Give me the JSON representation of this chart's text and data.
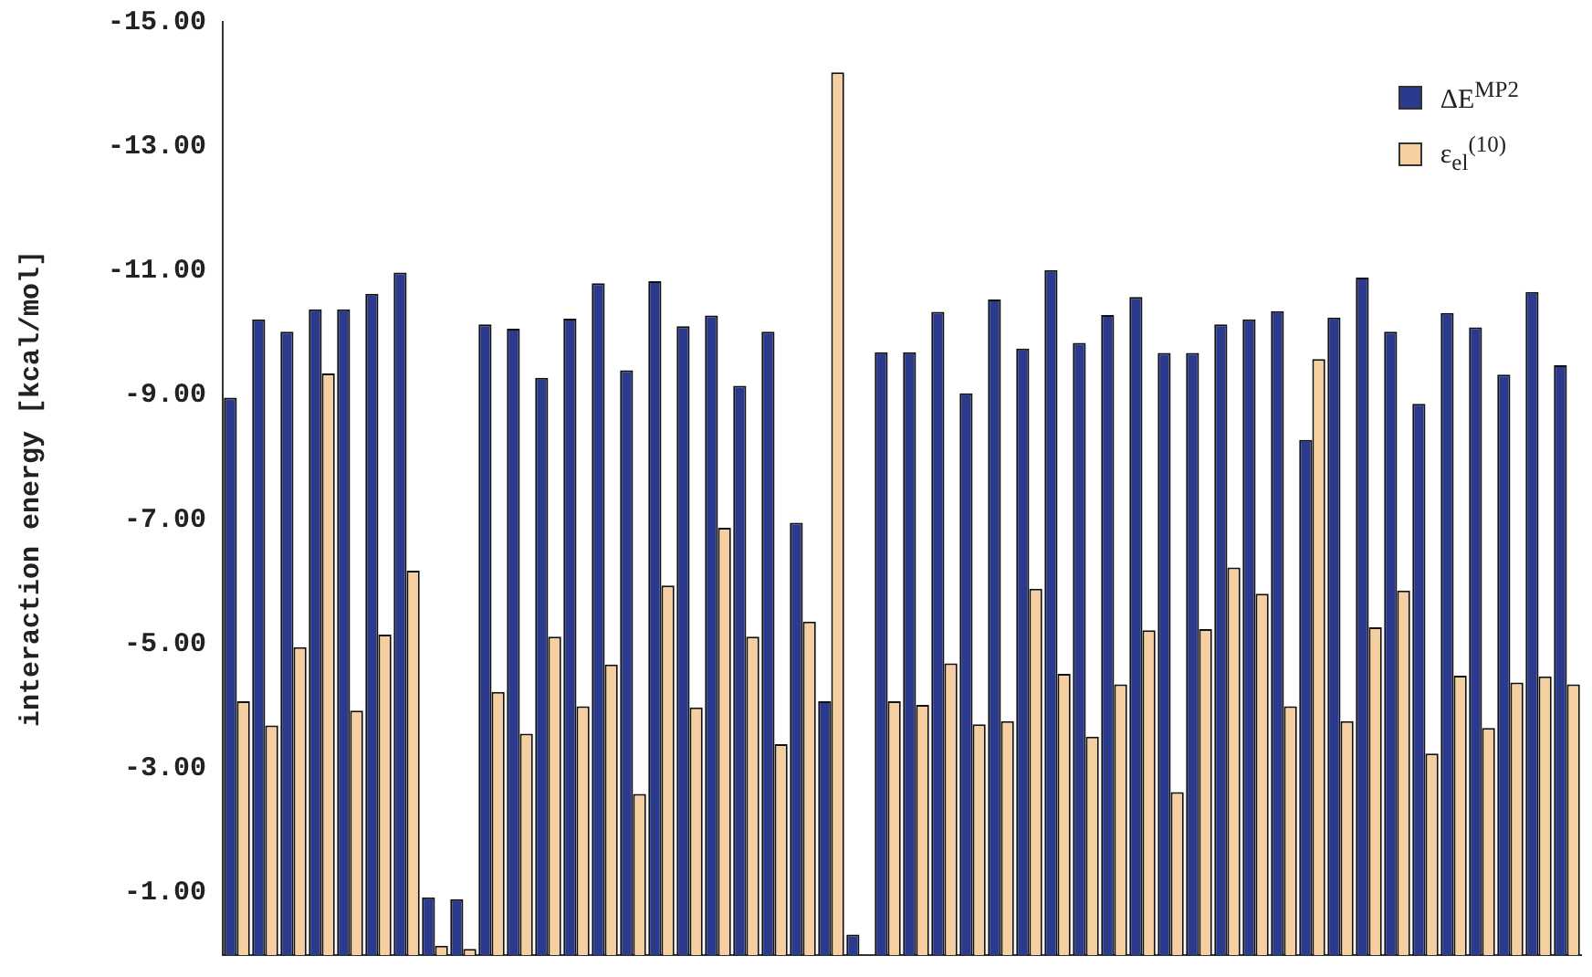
{
  "chart_data": {
    "type": "bar",
    "ylabel": "interaction energy [kcal/mol]",
    "categories": [
      null,
      null,
      null,
      null,
      null,
      null,
      null,
      null,
      null,
      null,
      null,
      null,
      null,
      null,
      null,
      null,
      null,
      null,
      null,
      null,
      null,
      null,
      null,
      null,
      null,
      null,
      null,
      null,
      null,
      null,
      null,
      null,
      null,
      null,
      null,
      null,
      null,
      null,
      null,
      null,
      null,
      null,
      null,
      null,
      null,
      null,
      null,
      null
    ],
    "series": [
      {
        "name": "ΔE$^{MP2}$",
        "color": "#2b3a8c",
        "values": [
          -8.96,
          -10.22,
          -10.02,
          -10.38,
          -10.38,
          -10.63,
          -10.97,
          -0.93,
          -0.9,
          -10.14,
          -10.07,
          -9.28,
          -10.23,
          -10.8,
          -9.4,
          -10.83,
          -10.11,
          -10.28,
          -9.15,
          -10.02,
          -6.95,
          -4.08,
          -0.33,
          -9.69,
          -9.69,
          -10.34,
          -9.03,
          -10.54,
          -9.75,
          -11.01,
          -9.84,
          -10.29,
          -10.58,
          -9.68,
          -9.68,
          -10.14,
          -10.22,
          -10.35,
          -8.28,
          -10.25,
          -10.89,
          -10.02,
          -8.86,
          -10.32,
          -10.09,
          -9.33,
          -10.66,
          -9.48
        ]
      },
      {
        "name": "ε$_{el}$$^{(10)}$",
        "color": "#f5cfa0",
        "values": [
          -4.08,
          -3.69,
          -4.95,
          -9.35,
          -3.93,
          -5.15,
          -6.18,
          -0.15,
          -0.1,
          -4.23,
          -3.56,
          -5.12,
          -4.0,
          -4.67,
          -2.59,
          -5.94,
          -3.98,
          -6.87,
          -5.12,
          -3.39,
          -5.36,
          -14.19,
          null,
          -4.08,
          -4.02,
          -4.69,
          -3.71,
          -3.76,
          -5.89,
          -4.52,
          -3.51,
          -4.35,
          -5.22,
          -2.62,
          -5.24,
          -6.23,
          -5.81,
          -4.0,
          -9.58,
          -3.76,
          -5.27,
          -5.86,
          -3.24,
          -4.49,
          -3.65,
          -4.38,
          -4.48,
          -4.35
        ]
      }
    ],
    "ylim": [
      0,
      -15
    ],
    "yticks": [
      {
        "value": -15,
        "label": "-15.00"
      },
      {
        "value": -13,
        "label": "-13.00"
      },
      {
        "value": -11,
        "label": "-11.00"
      },
      {
        "value": -9,
        "label": "-9.00"
      },
      {
        "value": -7,
        "label": "-7.00"
      },
      {
        "value": -5,
        "label": "-5.00"
      },
      {
        "value": -3,
        "label": "-3.00"
      },
      {
        "value": -1,
        "label": "-1.00"
      }
    ],
    "tick_labels": "y",
    "legend": "top right"
  }
}
